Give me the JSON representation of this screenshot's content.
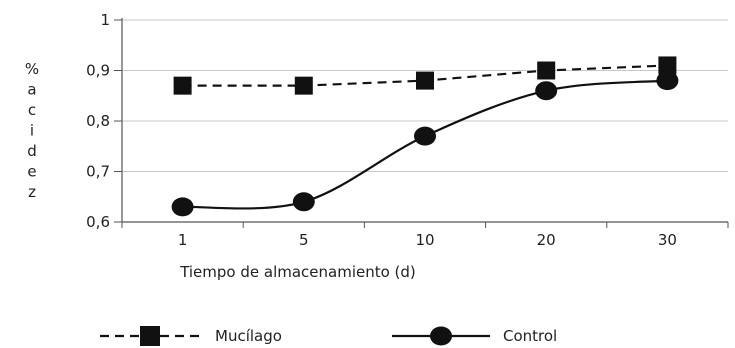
{
  "chart_data": {
    "type": "line",
    "categories": [
      "1",
      "5",
      "10",
      "20",
      "30"
    ],
    "ylim": [
      0.6,
      1.0
    ],
    "yticks": [
      0.6,
      0.7,
      0.8,
      0.9,
      1.0
    ],
    "ytick_labels": [
      "0,6",
      "0,7",
      "0,8",
      "0,9",
      "1"
    ],
    "xlabel": "Tiempo de almacenamiento (d)",
    "ylabel": "% acidez",
    "ylabel_chars": [
      "%",
      "a",
      "c",
      "i",
      "d",
      "e",
      "z"
    ],
    "grid": true,
    "legend_position": "bottom",
    "series": [
      {
        "name": "Mucílago",
        "values": [
          0.87,
          0.87,
          0.88,
          0.9,
          0.91
        ],
        "marker": "square",
        "line": "dashed",
        "color": "#111111"
      },
      {
        "name": "Control",
        "values": [
          0.63,
          0.64,
          0.77,
          0.86,
          0.88
        ],
        "marker": "circle",
        "line": "solid",
        "color": "#111111"
      }
    ]
  }
}
